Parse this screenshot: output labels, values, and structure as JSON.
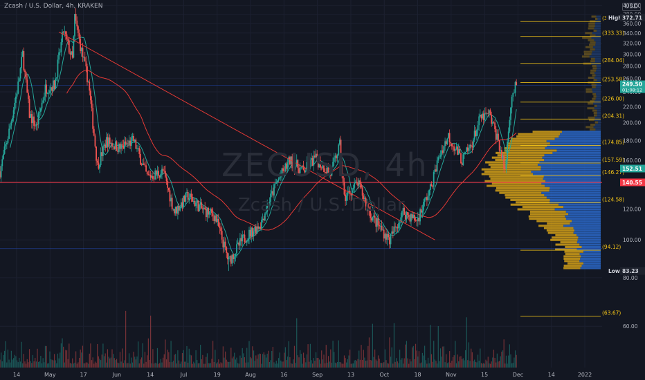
{
  "header": {
    "symbol_line": "Zcash / U.S. Dollar, 4h, KRAKEN",
    "watermark_symbol": "ZECUSD, 4h",
    "watermark_name": "Zcash / U.S. Dollar",
    "currency": "USD"
  },
  "colors": {
    "background": "#131722",
    "up": "#26a69a",
    "down": "#ef5350",
    "ma_fast": "#26a69a",
    "ma_slow": "#e53935",
    "fib": "#f5c518",
    "vp_up": "#2b68c9",
    "vp_down": "#d4a017",
    "support": "#f23645"
  },
  "chart_data": {
    "type": "candlestick",
    "title": "Zcash / U.S. Dollar, 4h, KRAKEN",
    "ylim": [
      47,
      400
    ],
    "y_scale": "log",
    "y_ticks": [
      60,
      80,
      100,
      120,
      140,
      160,
      180,
      200,
      220,
      240,
      260,
      280,
      300,
      320,
      340,
      360,
      380,
      400
    ],
    "x_ticks": [
      "14",
      "May",
      "17",
      "Jun",
      "14",
      "Jul",
      "19",
      "Aug",
      "16",
      "Sep",
      "13",
      "Oct",
      "18",
      "Nov",
      "15",
      "Dec",
      "14",
      "2022"
    ],
    "price_path": [
      [
        "2021-04-10",
        150
      ],
      [
        "2021-04-14",
        190
      ],
      [
        "2021-04-18",
        250
      ],
      [
        "2021-04-20",
        300
      ],
      [
        "2021-04-23",
        210
      ],
      [
        "2021-04-26",
        195
      ],
      [
        "2021-04-30",
        245
      ],
      [
        "2021-05-04",
        250
      ],
      [
        "2021-05-08",
        345
      ],
      [
        "2021-05-12",
        290
      ],
      [
        "2021-05-13",
        372.71
      ],
      [
        "2021-05-16",
        305
      ],
      [
        "2021-05-19",
        255
      ],
      [
        "2021-05-23",
        155
      ],
      [
        "2021-05-27",
        180
      ],
      [
        "2021-06-02",
        172
      ],
      [
        "2021-06-08",
        180
      ],
      [
        "2021-06-14",
        145
      ],
      [
        "2021-06-21",
        150
      ],
      [
        "2021-06-26",
        118
      ],
      [
        "2021-07-02",
        130
      ],
      [
        "2021-07-08",
        120
      ],
      [
        "2021-07-14",
        115
      ],
      [
        "2021-07-20",
        88
      ],
      [
        "2021-07-26",
        100
      ],
      [
        "2021-08-03",
        110
      ],
      [
        "2021-08-10",
        140
      ],
      [
        "2021-08-16",
        160
      ],
      [
        "2021-08-22",
        150
      ],
      [
        "2021-08-27",
        162
      ],
      [
        "2021-09-03",
        148
      ],
      [
        "2021-09-07",
        175
      ],
      [
        "2021-09-09",
        128
      ],
      [
        "2021-09-15",
        140
      ],
      [
        "2021-09-21",
        115
      ],
      [
        "2021-09-29",
        100
      ],
      [
        "2021-10-05",
        118
      ],
      [
        "2021-10-11",
        112
      ],
      [
        "2021-10-17",
        135
      ],
      [
        "2021-10-21",
        165
      ],
      [
        "2021-10-25",
        185
      ],
      [
        "2021-10-31",
        160
      ],
      [
        "2021-11-04",
        175
      ],
      [
        "2021-11-08",
        205
      ],
      [
        "2021-11-12",
        210
      ],
      [
        "2021-11-16",
        180
      ],
      [
        "2021-11-19",
        150
      ],
      [
        "2021-11-21",
        210
      ],
      [
        "2021-11-22",
        235
      ],
      [
        "2021-11-24",
        249.5
      ]
    ],
    "trendline": [
      [
        "2021-05-06",
        342
      ],
      [
        "2021-10-19",
        100
      ]
    ],
    "fib_levels": [
      {
        "label": "(363.77)",
        "value": 363.77
      },
      {
        "label": "(333.33)",
        "value": 333.33
      },
      {
        "label": "(284.04)",
        "value": 284.04
      },
      {
        "label": "(253.58)",
        "value": 253.58
      },
      {
        "label": "(226.00)",
        "value": 226.0
      },
      {
        "label": "(204.31)",
        "value": 204.31
      },
      {
        "label": "(174.85)",
        "value": 174.85
      },
      {
        "label": "(157.59)",
        "value": 157.59
      },
      {
        "label": "(146.27)",
        "value": 146.27
      },
      {
        "label": "(124.58)",
        "value": 124.58
      },
      {
        "label": "(94.12)",
        "value": 94.12
      },
      {
        "label": "(63.67)",
        "value": 63.67
      }
    ],
    "support_level": 140.55,
    "markers": {
      "high": {
        "label": "High",
        "value": 372.71
      },
      "low": {
        "label": "Low",
        "value": 83.23
      },
      "last": {
        "value": 249.5,
        "text": "249.50",
        "countdown": "01:08:12"
      },
      "support": {
        "value": 140.55,
        "text": "140.55"
      },
      "ma_value": {
        "value": 152.51,
        "text": "152.51"
      }
    }
  }
}
